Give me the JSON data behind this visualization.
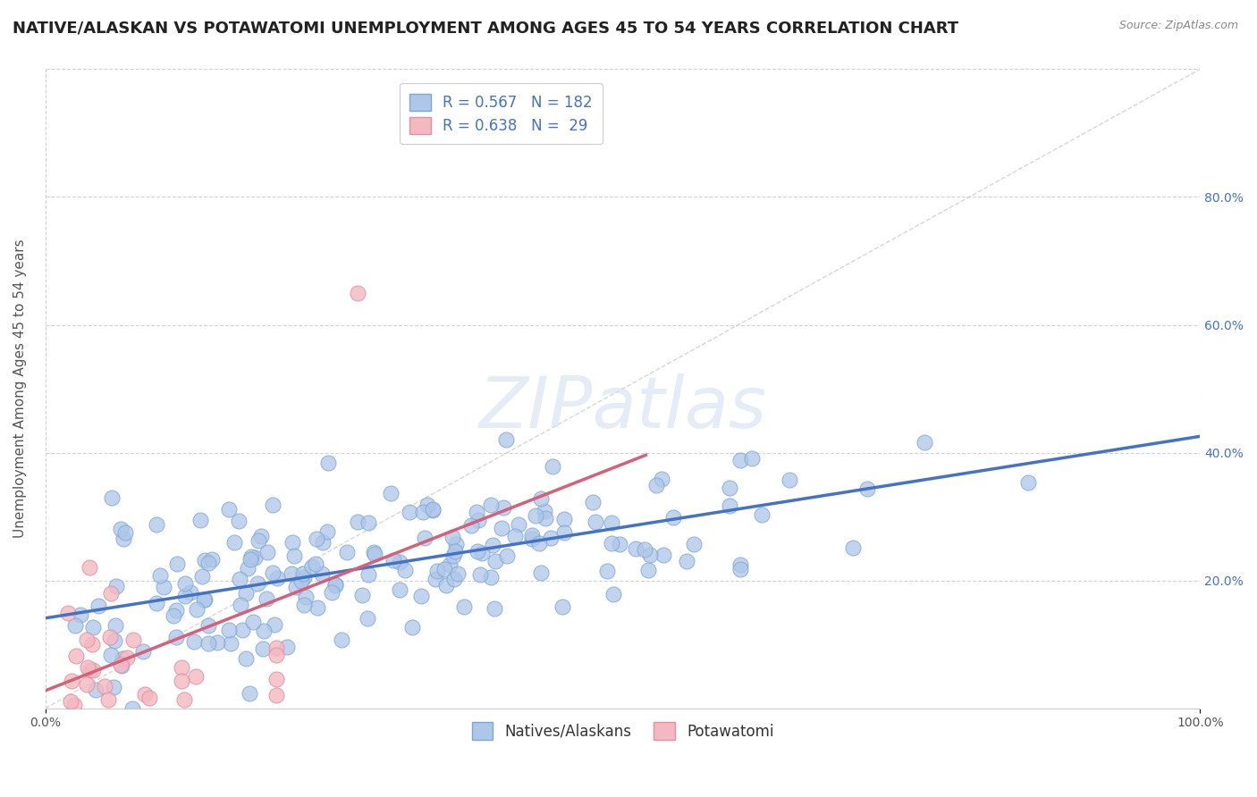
{
  "title": "NATIVE/ALASKAN VS POTAWATOMI UNEMPLOYMENT AMONG AGES 45 TO 54 YEARS CORRELATION CHART",
  "source": "Source: ZipAtlas.com",
  "ylabel": "Unemployment Among Ages 45 to 54 years",
  "xlim": [
    0,
    1.0
  ],
  "ylim": [
    0,
    1.0
  ],
  "xticks": [
    0.0,
    1.0
  ],
  "xticklabels": [
    "0.0%",
    "100.0%"
  ],
  "yticks": [
    0.0,
    0.2,
    0.4,
    0.6,
    0.8,
    1.0
  ],
  "yticklabels_right": [
    "",
    "20.0%",
    "40.0%",
    "60.0%",
    "80.0%",
    ""
  ],
  "bg_color": "#ffffff",
  "grid_color": "#cccccc",
  "watermark": "ZIPatlas",
  "blue_R": 0.567,
  "blue_N": 182,
  "pink_R": 0.638,
  "pink_N": 29,
  "blue_color": "#aec6e8",
  "pink_color": "#f4b8c1",
  "blue_edge_color": "#7ba7d4",
  "pink_edge_color": "#e090a0",
  "blue_line_color": "#4472c4",
  "pink_line_color": "#d4607a",
  "diagonal_color": "#cccccc",
  "legend_label_blue": "Natives/Alaskans",
  "legend_label_pink": "Potawatomi",
  "title_fontsize": 13,
  "axis_label_fontsize": 11,
  "tick_fontsize": 10,
  "legend_fontsize": 12,
  "seed": 42
}
